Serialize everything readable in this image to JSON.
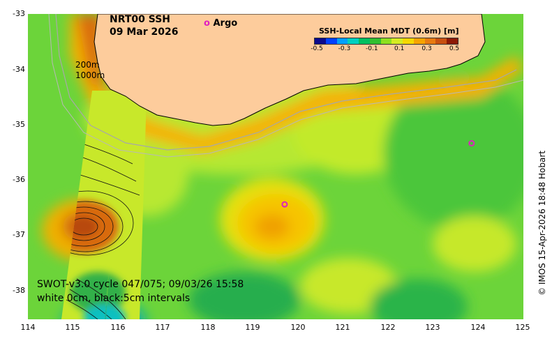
{
  "map": {
    "title_line1": "NRT00 SSH",
    "title_line2": "09 Mar 2026",
    "isobath_labels": [
      "200m",
      "1000m"
    ],
    "argo_legend": "Argo",
    "argo_marker": "o",
    "swot_line1": "SWOT-v3.0 cycle 047/075; 09/03/26 15:58",
    "swot_line2": "white 0cm, black:5cm intervals",
    "credit": "© IMOS 15-Apr-2026 18:48 Hobart",
    "land_color": "#fdcc9c",
    "argo_color": "#e020c0",
    "argo_floats": [
      {
        "lon": 119.7,
        "lat": -36.43
      },
      {
        "lon": 123.85,
        "lat": -35.33
      }
    ],
    "lon_range": [
      114,
      125
    ],
    "lat_range": [
      -38.5,
      -33
    ]
  },
  "axes": {
    "lat_ticks": [
      "-33",
      "-34",
      "-35",
      "-36",
      "-37",
      "-38"
    ],
    "lon_ticks": [
      "114",
      "115",
      "116",
      "117",
      "118",
      "119",
      "120",
      "121",
      "122",
      "123",
      "124",
      "125"
    ]
  },
  "colorbar": {
    "title": "SSH-Local Mean MDT (0.6m) [m]",
    "tick_labels": [
      "-0.5",
      "-0.3",
      "-0.1",
      "0.1",
      "0.3",
      "0.5"
    ],
    "colors": [
      "#0a0a8c",
      "#0040ff",
      "#00a0ff",
      "#00d0c0",
      "#00c060",
      "#30c030",
      "#8ee020",
      "#d6ec22",
      "#f6d800",
      "#f6a400",
      "#e87a10",
      "#c85010",
      "#8c1a06"
    ]
  }
}
